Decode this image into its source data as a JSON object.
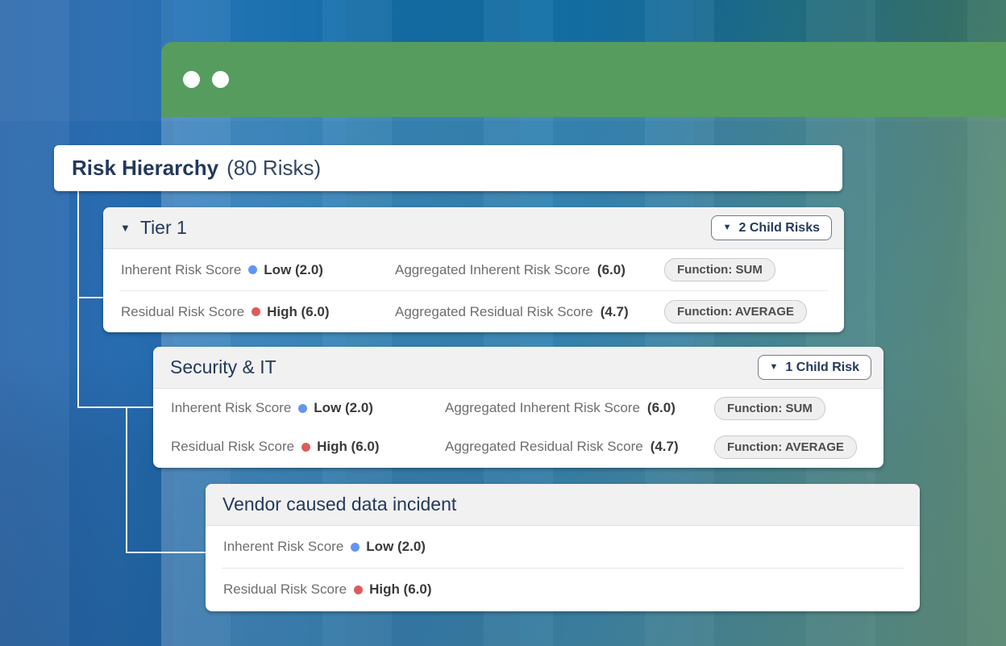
{
  "colors": {
    "titlebar_green": "#569c5f",
    "navy": "#24395b",
    "risk_low_blue": "#6196f3",
    "risk_high_red": "#df5b5b"
  },
  "root_card": {
    "title": "Risk Hierarchy",
    "count": "(80 Risks)"
  },
  "icons": {
    "caret_down": "▼"
  },
  "cards": [
    {
      "title": "Tier 1",
      "children_button": {
        "caret": "▼",
        "label": "2 Child Risks"
      },
      "rows": [
        {
          "label": "Inherent Risk Score",
          "value": "Low (2.0)",
          "agg_label": "Aggregated Inherent Risk Score",
          "agg_value": "(6.0)",
          "badge": "Function: SUM"
        },
        {
          "label": "Residual Risk Score",
          "value": "High (6.0)",
          "agg_label": "Aggregated Residual Risk Score",
          "agg_value": "(4.7)",
          "badge": "Function: AVERAGE"
        }
      ]
    },
    {
      "title": "Security & IT",
      "children_button": {
        "caret": "▼",
        "label": "1 Child Risk"
      },
      "rows": [
        {
          "label": "Inherent Risk Score",
          "value": "Low (2.0)",
          "agg_label": "Aggregated Inherent Risk Score",
          "agg_value": "(6.0)",
          "badge": "Function: SUM"
        },
        {
          "label": "Residual Risk Score",
          "value": "High (6.0)",
          "agg_label": "Aggregated Residual Risk Score",
          "agg_value": "(4.7)",
          "badge": "Function: AVERAGE"
        }
      ]
    },
    {
      "title": "Vendor caused data incident",
      "rows": [
        {
          "label": "Inherent Risk Score",
          "value": "Low (2.0)"
        },
        {
          "label": "Residual Risk Score",
          "value": "High (6.0)"
        }
      ]
    }
  ]
}
